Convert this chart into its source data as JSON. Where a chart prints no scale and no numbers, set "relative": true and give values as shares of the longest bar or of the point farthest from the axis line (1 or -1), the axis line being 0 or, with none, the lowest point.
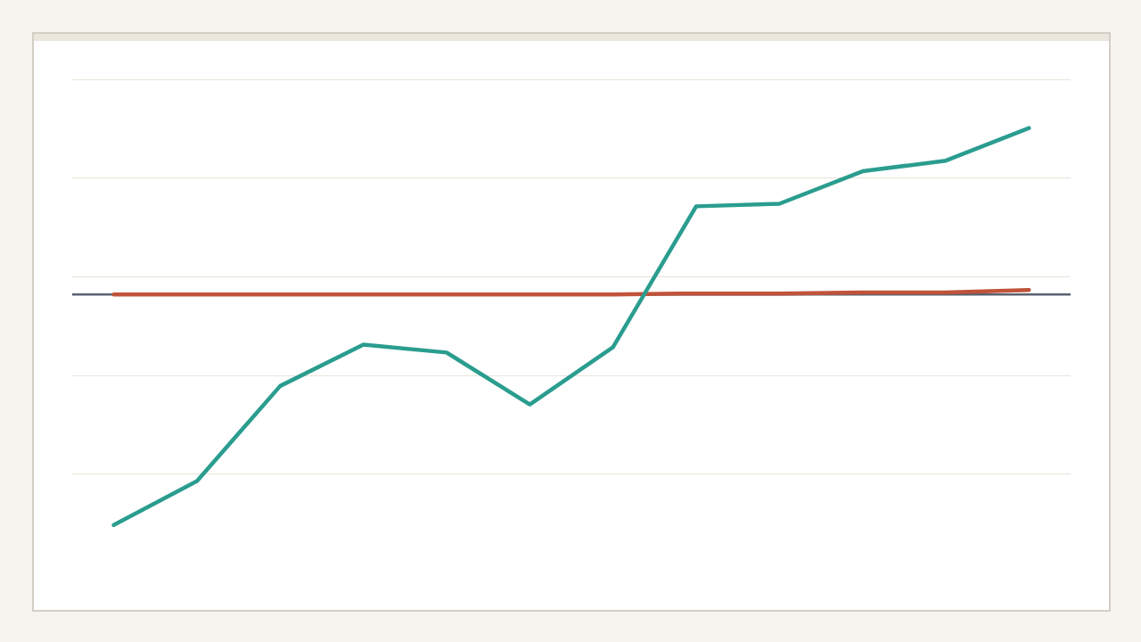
{
  "chart_data": {
    "type": "line",
    "relative": true,
    "grid": "y",
    "legend": false,
    "marker": "none",
    "line_style": "solid",
    "categories": [
      null,
      null,
      null,
      null,
      null,
      null,
      null,
      null,
      null,
      null,
      null,
      null
    ],
    "series": [
      {
        "color": "#2a9d8f",
        "values": [
          -1,
          -0.809,
          -0.397,
          -0.218,
          -0.252,
          -0.477,
          -0.229,
          0.382,
          0.393,
          0.534,
          0.58,
          0.721
        ]
      },
      {
        "color": "#c0533a",
        "values": [
          0,
          0,
          0,
          0,
          0,
          0,
          0,
          0.004,
          0.004,
          0.008,
          0.008,
          0.019
        ]
      }
    ]
  }
}
